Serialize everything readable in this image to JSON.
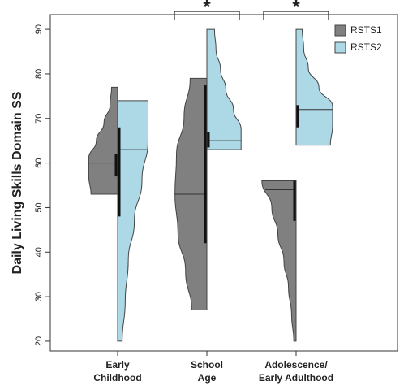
{
  "chart_data": {
    "type": "split-violin",
    "ylabel": "Daily Living Skills Domain SS",
    "categories": [
      [
        "Early",
        "Childhood"
      ],
      [
        "School",
        "Age"
      ],
      [
        "Adolescence/",
        "Early Adulthood"
      ]
    ],
    "ylim": [
      17.8,
      93.3
    ],
    "yticks": [
      20,
      30,
      40,
      50,
      60,
      70,
      80,
      90
    ],
    "legend": "top-right",
    "series": [
      {
        "name": "RSTS1",
        "color": "#808080",
        "side": "left",
        "stats": [
          {
            "min": 53,
            "max": 77,
            "median": 60,
            "bar": [
              57,
              62
            ],
            "density": [
              35,
              38,
              38,
              28,
              18,
              10,
              8
            ]
          },
          {
            "min": 27,
            "max": 79,
            "median": 53,
            "bar": [
              42,
              77.5
            ],
            "density": [
              20,
              28,
              38,
              42,
              40,
              30,
              22
            ]
          },
          {
            "min": 20,
            "max": 56,
            "median": 54,
            "bar": [
              47,
              56
            ],
            "density": [
              3,
              6,
              10,
              16,
              24,
              32,
              45
            ]
          }
        ]
      },
      {
        "name": "RSTS2",
        "color": "#add8e6",
        "side": "right",
        "stats": [
          {
            "min": 20,
            "max": 74,
            "median": 63,
            "bar": [
              48,
              68
            ],
            "density": [
              6,
              10,
              14,
              22,
              32,
              40,
              40
            ]
          },
          {
            "min": 63,
            "max": 90,
            "median": 65,
            "bar": [
              63.5,
              67
            ],
            "density": [
              45,
              45,
              35,
              25,
              18,
              12,
              10
            ]
          },
          {
            "min": 64,
            "max": 90,
            "median": 72,
            "bar": [
              68,
              73
            ],
            "density": [
              45,
              48,
              48,
              30,
              16,
              10,
              8
            ]
          }
        ]
      }
    ],
    "annotations": [
      {
        "text": "*",
        "category": 1
      },
      {
        "text": "*",
        "category": 2
      }
    ]
  }
}
